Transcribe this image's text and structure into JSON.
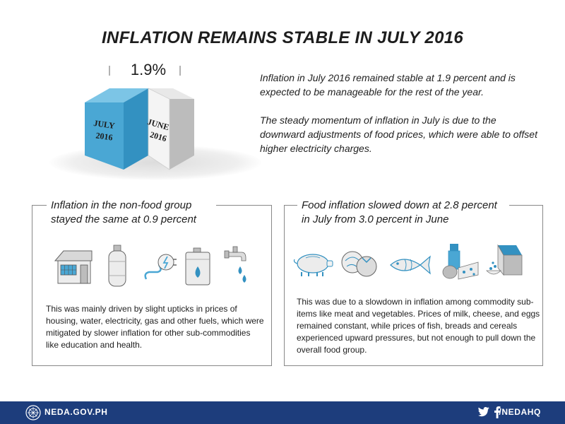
{
  "title": "INFLATION REMAINS STABLE IN JULY 2016",
  "headline_rate": "1.9%",
  "cubes": [
    {
      "line1": "JULY",
      "line2": "2016",
      "color": "#4aa7d4"
    },
    {
      "line1": "JUNE",
      "line2": "2016",
      "color": "#d9d9d9"
    }
  ],
  "intro": {
    "p1": "Inflation in July 2016 remained stable at 1.9 percent and is expected to be manageable for the rest of the year.",
    "p2": "The steady momentum of inflation in July is due to the downward adjustments of food prices, which were able to offset higher electricity charges."
  },
  "nonfood": {
    "heading": "Inflation in the non-food group stayed the same at 0.9 percent",
    "icons": [
      "house-icon",
      "gas-cylinder-icon",
      "electric-plug-icon",
      "fuel-container-icon",
      "water-faucet-icon"
    ],
    "text": "This was mainly driven by slight upticks in prices of housing, water, electricity, gas and other fuels, which were mitigated by slower inflation for other sub-commodities like education and health."
  },
  "food": {
    "heading": "Food inflation slowed down at 2.8 percent in July from 3.0 percent in June",
    "icons": [
      "pig-icon",
      "vegetables-icon",
      "fish-icon",
      "dairy-icon",
      "cereal-box-icon"
    ],
    "text": "This was due to a slowdown in inflation among commodity sub-items like meat and vegetables. Prices of milk, cheese, and eggs remained constant, while prices of fish, breads and cereals experienced upward pressures, but not enough to pull down the overall food group."
  },
  "footer": {
    "site": "NEDA.GOV.PH",
    "social": "/NEDAHQ",
    "bar_color": "#1d3d7c"
  }
}
